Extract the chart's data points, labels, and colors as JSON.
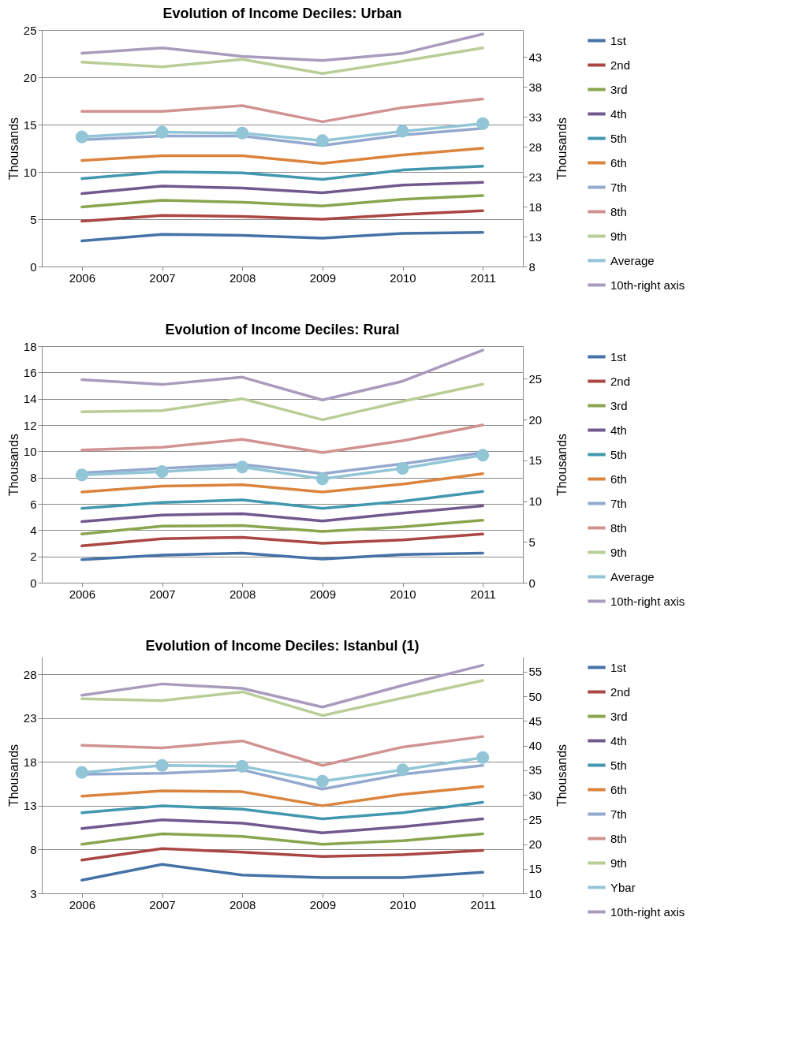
{
  "chart_data": [
    {
      "type": "line",
      "title": "Evolution of Income Deciles: Urban",
      "ylabel": "Thousands",
      "y2label": "Thousands",
      "categories": [
        "2006",
        "2007",
        "2008",
        "2009",
        "2010",
        "2011"
      ],
      "ylim": [
        0,
        25
      ],
      "yticks": [
        0,
        5,
        10,
        15,
        20,
        25
      ],
      "y2lim": [
        8,
        47.5
      ],
      "y2ticks": [
        8,
        13,
        18,
        23,
        28,
        33,
        38,
        43
      ],
      "grid": "y",
      "legend": "right",
      "series": [
        {
          "name": "1st",
          "color": "#4572a7",
          "values": [
            2.7,
            3.4,
            3.3,
            3.0,
            3.5,
            3.6
          ]
        },
        {
          "name": "2nd",
          "color": "#aa4643",
          "values": [
            4.8,
            5.4,
            5.3,
            5.0,
            5.5,
            5.9
          ]
        },
        {
          "name": "3rd",
          "color": "#89a54e",
          "values": [
            6.3,
            7.0,
            6.8,
            6.4,
            7.1,
            7.5
          ]
        },
        {
          "name": "4th",
          "color": "#71588f",
          "values": [
            7.7,
            8.5,
            8.3,
            7.8,
            8.6,
            8.9
          ]
        },
        {
          "name": "5th",
          "color": "#4198af",
          "values": [
            9.3,
            10.0,
            9.9,
            9.2,
            10.2,
            10.6
          ]
        },
        {
          "name": "6th",
          "color": "#db843d",
          "values": [
            11.2,
            11.7,
            11.7,
            10.9,
            11.8,
            12.5
          ]
        },
        {
          "name": "7th",
          "color": "#93a9cf",
          "values": [
            13.4,
            13.8,
            13.8,
            12.8,
            13.9,
            14.6
          ]
        },
        {
          "name": "8th",
          "color": "#d19392",
          "values": [
            16.4,
            16.4,
            17.0,
            15.3,
            16.8,
            17.7
          ]
        },
        {
          "name": "9th",
          "color": "#b9cd96",
          "values": [
            21.6,
            21.1,
            21.9,
            20.4,
            21.7,
            23.1
          ]
        },
        {
          "name": "Average",
          "color": "#92c5d6",
          "marker": "circle",
          "values": [
            13.7,
            14.2,
            14.1,
            13.3,
            14.3,
            15.1
          ]
        },
        {
          "name": "10th-right axis",
          "color": "#a99bbd",
          "axis": "y2",
          "values": [
            43.6,
            44.5,
            43.1,
            42.4,
            43.6,
            46.8
          ]
        }
      ]
    },
    {
      "type": "line",
      "title": "Evolution of Income Deciles: Rural",
      "ylabel": "Thousands",
      "y2label": "Thousands",
      "categories": [
        "2006",
        "2007",
        "2008",
        "2009",
        "2010",
        "2011"
      ],
      "ylim": [
        0,
        18
      ],
      "yticks": [
        0,
        2,
        4,
        6,
        8,
        10,
        12,
        14,
        16,
        18
      ],
      "y2lim": [
        0,
        29
      ],
      "y2ticks": [
        0,
        5,
        10,
        15,
        20,
        25
      ],
      "grid": "y",
      "legend": "right",
      "series": [
        {
          "name": "1st",
          "color": "#4572a7",
          "values": [
            1.75,
            2.1,
            2.25,
            1.8,
            2.15,
            2.25
          ]
        },
        {
          "name": "2nd",
          "color": "#aa4643",
          "values": [
            2.8,
            3.35,
            3.45,
            3.0,
            3.25,
            3.7
          ]
        },
        {
          "name": "3rd",
          "color": "#89a54e",
          "values": [
            3.7,
            4.3,
            4.35,
            3.9,
            4.25,
            4.75
          ]
        },
        {
          "name": "4th",
          "color": "#71588f",
          "values": [
            4.65,
            5.15,
            5.25,
            4.7,
            5.3,
            5.85
          ]
        },
        {
          "name": "5th",
          "color": "#4198af",
          "values": [
            5.65,
            6.1,
            6.3,
            5.65,
            6.2,
            6.95
          ]
        },
        {
          "name": "6th",
          "color": "#db843d",
          "values": [
            6.9,
            7.35,
            7.45,
            6.9,
            7.5,
            8.3
          ]
        },
        {
          "name": "7th",
          "color": "#93a9cf",
          "values": [
            8.35,
            8.7,
            9.0,
            8.3,
            9.05,
            9.9
          ]
        },
        {
          "name": "8th",
          "color": "#d19392",
          "values": [
            10.1,
            10.3,
            10.9,
            9.9,
            10.8,
            12.0
          ]
        },
        {
          "name": "9th",
          "color": "#b9cd96",
          "values": [
            13.0,
            13.1,
            14.0,
            12.4,
            13.8,
            15.1
          ]
        },
        {
          "name": "Average",
          "color": "#92c5d6",
          "marker": "circle",
          "values": [
            8.2,
            8.45,
            8.8,
            7.9,
            8.7,
            9.7
          ]
        },
        {
          "name": "10th-right axis",
          "color": "#a99bbd",
          "axis": "y2",
          "values": [
            24.9,
            24.3,
            25.2,
            22.4,
            24.7,
            28.5
          ]
        }
      ]
    },
    {
      "type": "line",
      "title": "Evolution of Income Deciles: Istanbul (1)",
      "ylabel": "Thousands",
      "y2label": "Thousands",
      "categories": [
        "2006",
        "2007",
        "2008",
        "2009",
        "2010",
        "2011"
      ],
      "ylim": [
        3,
        30
      ],
      "yticks": [
        3,
        8,
        13,
        18,
        23,
        28
      ],
      "y2lim": [
        10,
        58
      ],
      "y2ticks": [
        10,
        15,
        20,
        25,
        30,
        35,
        40,
        45,
        50,
        55
      ],
      "grid": "y",
      "legend": "right",
      "series": [
        {
          "name": "1st",
          "color": "#4572a7",
          "values": [
            4.5,
            6.3,
            5.1,
            4.8,
            4.8,
            5.4
          ]
        },
        {
          "name": "2nd",
          "color": "#aa4643",
          "values": [
            6.8,
            8.1,
            7.7,
            7.2,
            7.4,
            7.9
          ]
        },
        {
          "name": "3rd",
          "color": "#89a54e",
          "values": [
            8.6,
            9.8,
            9.5,
            8.6,
            9.0,
            9.8
          ]
        },
        {
          "name": "4th",
          "color": "#71588f",
          "values": [
            10.4,
            11.4,
            11.0,
            9.9,
            10.6,
            11.5
          ]
        },
        {
          "name": "5th",
          "color": "#4198af",
          "values": [
            12.2,
            13.0,
            12.6,
            11.5,
            12.2,
            13.4
          ]
        },
        {
          "name": "6th",
          "color": "#db843d",
          "values": [
            14.1,
            14.7,
            14.6,
            13.0,
            14.3,
            15.2
          ]
        },
        {
          "name": "7th",
          "color": "#93a9cf",
          "values": [
            16.6,
            16.7,
            17.1,
            14.9,
            16.6,
            17.6
          ]
        },
        {
          "name": "8th",
          "color": "#d19392",
          "values": [
            19.9,
            19.6,
            20.4,
            17.6,
            19.7,
            20.9
          ]
        },
        {
          "name": "9th",
          "color": "#b9cd96",
          "values": [
            25.2,
            25.0,
            26.0,
            23.3,
            25.3,
            27.3
          ]
        },
        {
          "name": "Ybar",
          "color": "#92c5d6",
          "marker": "circle",
          "values": [
            16.8,
            17.6,
            17.5,
            15.8,
            17.1,
            18.5
          ]
        },
        {
          "name": "10th-right axis",
          "color": "#a99bbd",
          "axis": "y2",
          "values": [
            50.2,
            52.5,
            51.6,
            47.8,
            52.2,
            56.3
          ]
        }
      ]
    }
  ]
}
